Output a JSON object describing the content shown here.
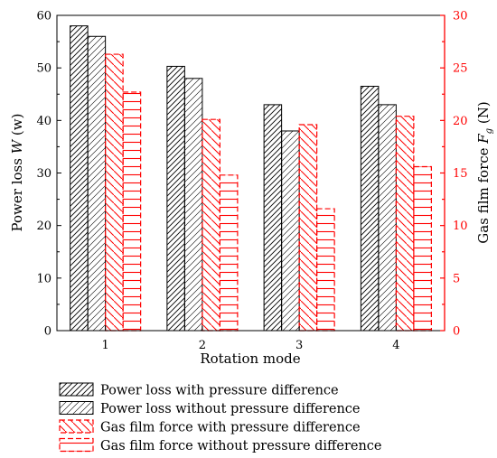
{
  "chart_data": {
    "type": "bar",
    "categories": [
      "1",
      "2",
      "3",
      "4"
    ],
    "xlabel": "Rotation mode",
    "ylabel_left": "Power loss W (w)",
    "ylabel_left_parts": {
      "prefix": "Power loss ",
      "symbol": "W",
      "unit": " (w)"
    },
    "ylabel_right": "Gas film force Fg (N)",
    "ylabel_right_parts": {
      "prefix": "Gas film force ",
      "symbol": "F",
      "subscript": "g",
      "unit": " (N)"
    },
    "ylim_left": [
      0,
      60
    ],
    "yticks_left": [
      "0",
      "10",
      "20",
      "30",
      "40",
      "50",
      "60"
    ],
    "ylim_right": [
      0,
      30
    ],
    "yticks_right": [
      "0",
      "5",
      "10",
      "15",
      "20",
      "25",
      "30"
    ],
    "xticks": [
      "1",
      "2",
      "3",
      "4"
    ],
    "legend_position": "bottom",
    "grid": false,
    "series": [
      {
        "name": "Power loss with pressure difference",
        "axis": "left",
        "values": [
          58,
          50.3,
          43,
          46.5
        ],
        "color": "#000000",
        "hatch": "dense-diagonal"
      },
      {
        "name": "Power loss without pressure difference",
        "axis": "left",
        "values": [
          56,
          48,
          38,
          43
        ],
        "color": "#000000",
        "hatch": "sparse-diagonal"
      },
      {
        "name": "Gas film force with pressure difference",
        "axis": "right",
        "values": [
          26.3,
          20.1,
          19.6,
          20.4
        ],
        "color": "#ff0000",
        "hatch": "back-diagonal"
      },
      {
        "name": "Gas film force without pressure difference",
        "axis": "right",
        "values": [
          22.7,
          14.8,
          11.6,
          15.6
        ],
        "color": "#ff0000",
        "hatch": "horizontal"
      }
    ],
    "colors": {
      "left_axis": "#000000",
      "right_axis": "#ff0000"
    }
  }
}
